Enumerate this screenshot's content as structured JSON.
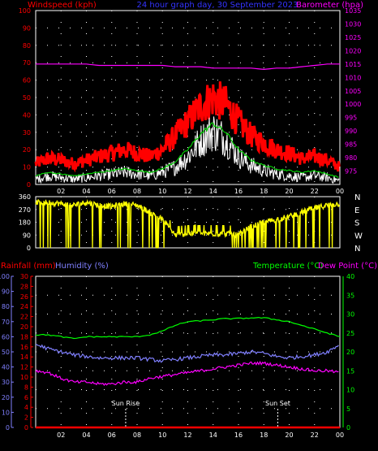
{
  "chart_data": [
    {
      "type": "line",
      "title": "24 hour graph day,  30 September 2023",
      "left_axis_label": "Windspeed (kph)",
      "right_axis_label": "Barometer (hpa)",
      "x_ticks": [
        "02",
        "04",
        "06",
        "08",
        "10",
        "12",
        "14",
        "16",
        "18",
        "20",
        "22",
        "00"
      ],
      "ylim_left": [
        0,
        100
      ],
      "yticks_left": [
        0,
        10,
        20,
        30,
        40,
        50,
        60,
        70,
        80,
        90,
        100
      ],
      "ylim_right": [
        970,
        1035
      ],
      "yticks_right": [
        975,
        980,
        985,
        990,
        995,
        1000,
        1005,
        1010,
        1015,
        1020,
        1025,
        1030,
        1035
      ],
      "x": [
        0,
        1,
        2,
        3,
        4,
        5,
        6,
        7,
        8,
        9,
        10,
        11,
        12,
        13,
        14,
        15,
        16,
        17,
        18,
        19,
        20,
        21,
        22,
        23,
        24
      ],
      "series": [
        {
          "key": "gust",
          "color": "#ff0000",
          "values": [
            12,
            15,
            14,
            12,
            14,
            16,
            18,
            20,
            18,
            16,
            20,
            28,
            36,
            45,
            50,
            46,
            36,
            28,
            24,
            20,
            18,
            15,
            16,
            14,
            10
          ]
        },
        {
          "key": "average",
          "color": "#00cc00",
          "values": [
            5,
            7,
            6,
            5,
            6,
            7,
            8,
            9,
            8,
            7,
            9,
            13,
            20,
            29,
            35,
            30,
            20,
            14,
            11,
            9,
            8,
            7,
            8,
            6,
            4
          ]
        },
        {
          "key": "speed",
          "color": "#ffffff",
          "values": [
            3,
            5,
            4,
            3,
            4,
            5,
            6,
            7,
            6,
            5,
            7,
            10,
            16,
            25,
            31,
            26,
            16,
            11,
            8,
            6,
            5,
            4,
            5,
            4,
            2
          ]
        },
        {
          "key": "barometer",
          "color": "#ff00ff",
          "values": [
            1015,
            1015,
            1015,
            1015,
            1015,
            1014.5,
            1014.5,
            1014.5,
            1014.5,
            1014.5,
            1014.5,
            1014,
            1014,
            1014,
            1013.5,
            1013.5,
            1013.5,
            1013.5,
            1013,
            1013.5,
            1013.5,
            1014,
            1014.5,
            1015,
            1015
          ]
        }
      ]
    },
    {
      "type": "line",
      "ylim": [
        0,
        360
      ],
      "yticks": [
        0,
        90,
        180,
        270,
        360
      ],
      "right_labels": [
        "N",
        "W",
        "S",
        "E",
        "N"
      ],
      "series": [
        {
          "key": "direction",
          "color": "#ffff00",
          "values": [
            320,
            320,
            310,
            300,
            320,
            300,
            290,
            310,
            300,
            250,
            200,
            90,
            100,
            100,
            100,
            100,
            90,
            150,
            180,
            200,
            220,
            250,
            280,
            300,
            310
          ]
        }
      ]
    },
    {
      "type": "line",
      "left_axis_labels": [
        "Rainfall (mm)",
        "Humidity (%)"
      ],
      "right_axis_labels": [
        "Temperature (°C)",
        "Dew Point (°C)"
      ],
      "ylim_rain": [
        0,
        30
      ],
      "yticks_rain": [
        0,
        2,
        4,
        6,
        8,
        10,
        12,
        14,
        16,
        18,
        20,
        22,
        24,
        26,
        28,
        30
      ],
      "ylim_humidity": [
        0,
        100
      ],
      "yticks_humidity": [
        0,
        10,
        20,
        30,
        40,
        50,
        60,
        70,
        80,
        90,
        100
      ],
      "ylim_temp": [
        0,
        40
      ],
      "yticks_temp": [
        0,
        5,
        10,
        15,
        20,
        25,
        30,
        35,
        40
      ],
      "annotations": [
        {
          "label": "Sun Rise",
          "x": 7.1
        },
        {
          "label": "Sun Set",
          "x": 19.1
        }
      ],
      "series": [
        {
          "key": "temperature",
          "color": "#00ff00",
          "values": [
            24.5,
            24.5,
            24,
            23.5,
            24,
            24,
            24,
            24,
            24,
            24.5,
            25.5,
            27,
            28,
            28.2,
            28.5,
            28.8,
            28.8,
            29,
            29,
            28.5,
            28,
            27,
            26,
            25,
            24
          ]
        },
        {
          "key": "humidity",
          "color": "#8080ff",
          "values": [
            55,
            52,
            50,
            48,
            47,
            46,
            46,
            46,
            46,
            45,
            44,
            45,
            46,
            47,
            48,
            48,
            49,
            50,
            49,
            47,
            46,
            47,
            48,
            50,
            55
          ]
        },
        {
          "key": "dewpoint",
          "color": "#ff00ff",
          "values": [
            15,
            14.5,
            13,
            12,
            12,
            11.5,
            11.5,
            12,
            12,
            13,
            13.5,
            14,
            14.5,
            15,
            15.5,
            16,
            16.5,
            17,
            17,
            16.5,
            16,
            15.5,
            15,
            15,
            14.5
          ]
        },
        {
          "key": "rainfall",
          "color": "#ff0000",
          "values": [
            0,
            0,
            0,
            0,
            0,
            0,
            0,
            0,
            0,
            0,
            0,
            0,
            0,
            0,
            0,
            0,
            0,
            0,
            0,
            0,
            0,
            0,
            0,
            0,
            0
          ]
        }
      ]
    }
  ]
}
